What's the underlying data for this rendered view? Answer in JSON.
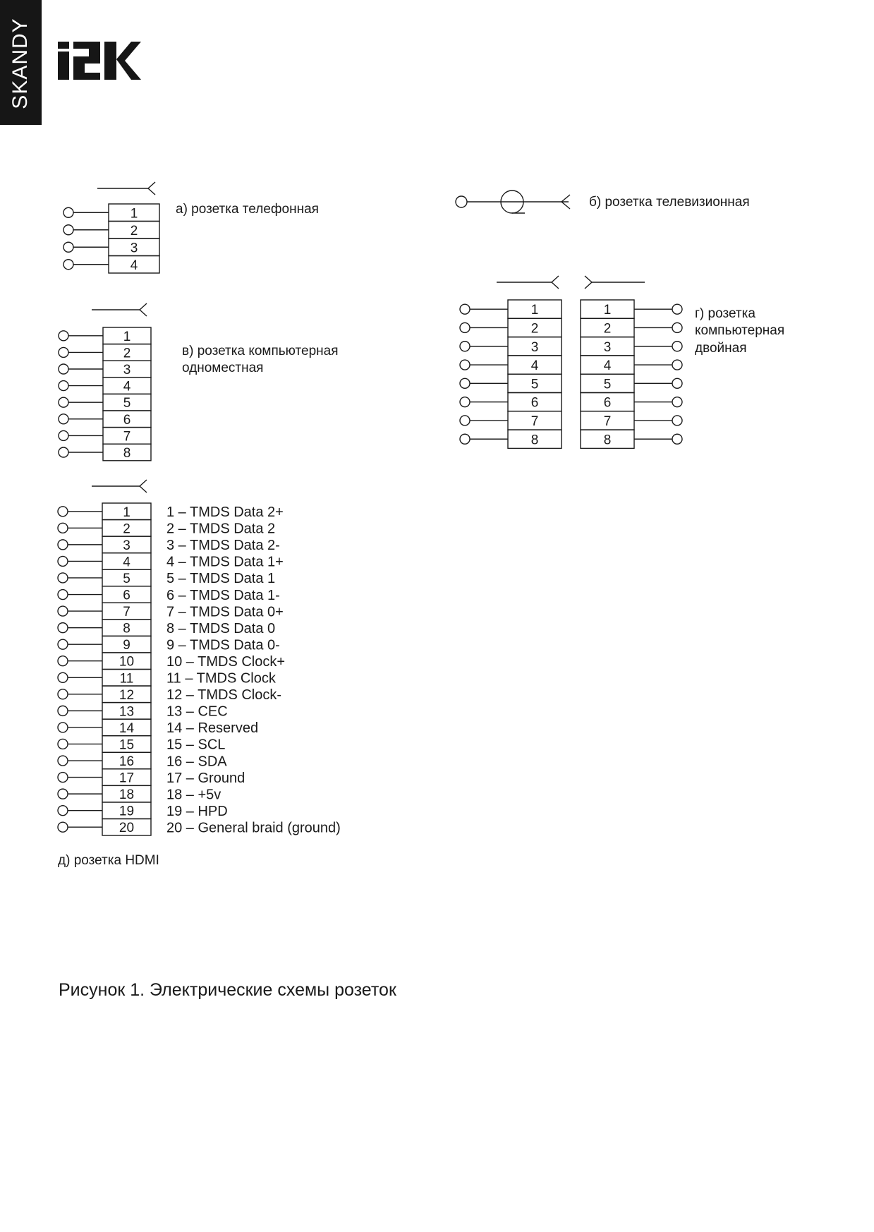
{
  "brand": {
    "series": "SKANDY",
    "logo_text": "IEK"
  },
  "phone_socket": {
    "label": "а) розетка телефонная",
    "pins": [
      "1",
      "2",
      "3",
      "4"
    ]
  },
  "tv_socket": {
    "label": "б) розетка телевизионная"
  },
  "computer_single": {
    "label_lines": [
      "в) розетка компьютерная",
      "одноместная"
    ],
    "pins": [
      "1",
      "2",
      "3",
      "4",
      "5",
      "6",
      "7",
      "8"
    ]
  },
  "computer_double": {
    "label_lines": [
      "г) розетка",
      "компьютерная",
      "двойная"
    ],
    "pins": [
      "1",
      "2",
      "3",
      "4",
      "5",
      "6",
      "7",
      "8"
    ]
  },
  "hdmi_socket": {
    "label": "д) розетка HDMI",
    "pins": [
      "1",
      "2",
      "3",
      "4",
      "5",
      "6",
      "7",
      "8",
      "9",
      "10",
      "11",
      "12",
      "13",
      "14",
      "15",
      "16",
      "17",
      "18",
      "19",
      "20"
    ],
    "descriptions": [
      "1 – TMDS Data 2+",
      "2 – TMDS Data 2",
      "3 – TMDS Data 2-",
      "4 – TMDS Data 1+",
      "5 – TMDS Data 1",
      "6 – TMDS Data 1-",
      "7 – TMDS Data 0+",
      "8 – TMDS Data 0",
      "9 – TMDS Data 0-",
      "10 – TMDS Clock+",
      "11 – TMDS Clock",
      "12 – TMDS Clock-",
      "13 – CEC",
      "14 – Reserved",
      "15 – SCL",
      "16 – SDA",
      "17 – Ground",
      "18 – +5v",
      "19 – HPD",
      "20 – General braid (ground)"
    ]
  },
  "caption": "Рисунок 1. Электрические схемы розеток"
}
